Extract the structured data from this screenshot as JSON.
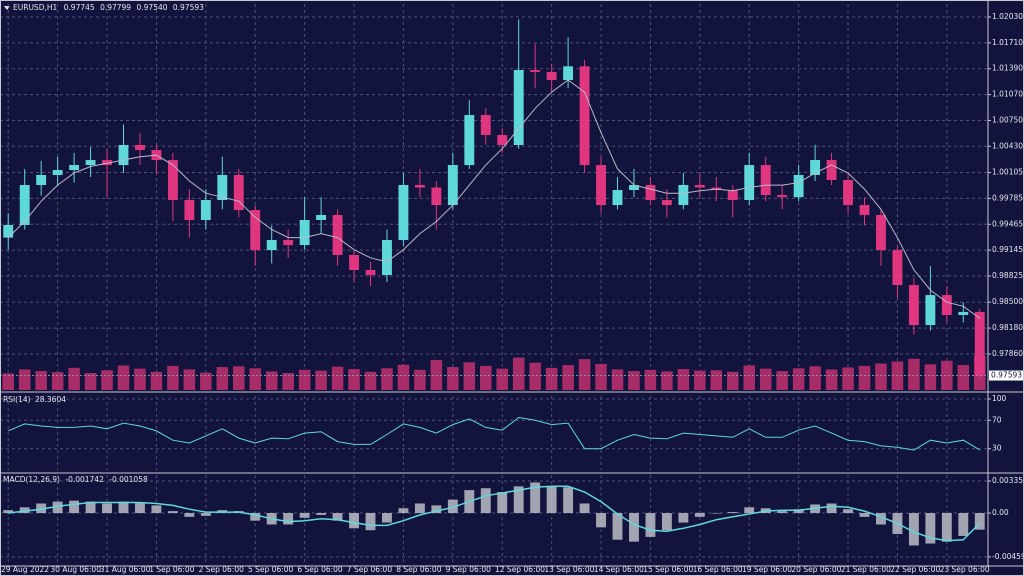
{
  "chart_data": [
    {
      "type": "candlestick",
      "title": "EURUSD,H1",
      "header_values": [
        {
          "value": 0.97745,
          "label": "0.97745"
        },
        {
          "value": 0.97799,
          "label": "0.97799"
        },
        {
          "value": 0.9754,
          "label": "0.97540"
        },
        {
          "value": 0.97593,
          "label": "0.97593"
        }
      ],
      "categories": [
        "29 Aug 2022",
        null,
        null,
        "30 Aug 06:00",
        null,
        null,
        "31 Aug 06:00",
        null,
        null,
        "1 Sep 06:00",
        null,
        null,
        "2 Sep 06:00",
        null,
        null,
        "5 Sep 06:00",
        null,
        null,
        "6 Sep 06:00",
        null,
        null,
        "7 Sep 06:00",
        null,
        null,
        "8 Sep 06:00",
        null,
        null,
        "9 Sep 06:00",
        null,
        null,
        "12 Sep 06:00",
        null,
        null,
        "13 Sep 06:00",
        null,
        null,
        "14 Sep 06:00",
        null,
        null,
        "15 Sep 06:00",
        null,
        null,
        "16 Sep 06:00",
        null,
        null,
        "19 Sep 06:00",
        null,
        null,
        "20 Sep 06:00",
        null,
        null,
        "21 Sep 06:00",
        null,
        null,
        "22 Sep 06:00",
        null,
        null,
        "23 Sep 06:00",
        null,
        null
      ],
      "open": [
        0.993,
        0.99456,
        0.99951,
        1.00075,
        1.00136,
        1.00198,
        1.0026,
        1.00198,
        1.00446,
        1.00384,
        1.0026,
        0.99765,
        0.99518,
        0.99765,
        1.00075,
        0.99641,
        0.99146,
        0.9927,
        0.99208,
        0.99518,
        0.9958,
        0.99085,
        0.98899,
        0.98837,
        0.9927,
        0.99951,
        0.9992,
        0.99703,
        1.00198,
        1.00817,
        1.0057,
        1.00446,
        1.01374,
        1.0135,
        1.0125,
        1.0142,
        1.00198,
        0.99703,
        0.99889,
        0.99951,
        0.99765,
        0.99703,
        0.99951,
        0.9992,
        0.99889,
        0.99765,
        1.00198,
        0.99827,
        0.998,
        1.00075,
        1.0026,
        1.00013,
        0.99703,
        0.9958,
        0.99146,
        0.98713,
        0.98218,
        0.98589,
        0.98342,
        0.9838
      ],
      "high": [
        0.996,
        1.0015,
        1.0025,
        1.003,
        1.0035,
        1.0042,
        1.004,
        1.007,
        1.006,
        1.0045,
        1.0035,
        0.999,
        0.999,
        1.003,
        1.0015,
        0.997,
        0.9945,
        0.994,
        0.998,
        0.998,
        0.9965,
        0.9915,
        0.99,
        0.994,
        1.001,
        1.0015,
        1.0,
        1.0035,
        1.01,
        1.009,
        1.0065,
        1.02,
        1.017,
        1.0145,
        1.0178,
        1.015,
        1.003,
        1.0005,
        1.0015,
        1.0005,
        0.999,
        1.001,
        1.001,
        1.0005,
        0.9995,
        1.0035,
        1.003,
        0.9995,
        1.002,
        1.0045,
        1.0035,
        1.001,
        0.998,
        0.9965,
        0.992,
        0.988,
        0.9895,
        0.987,
        0.985,
        0.9842
      ],
      "low": [
        0.9915,
        0.994,
        0.9982,
        0.9995,
        0.9998,
        1.0005,
        0.998,
        1.001,
        1.002,
        1.0008,
        0.995,
        0.993,
        0.994,
        0.9965,
        0.9955,
        0.9895,
        0.9898,
        0.9905,
        0.9915,
        0.9935,
        0.9895,
        0.9875,
        0.987,
        0.9875,
        0.992,
        0.998,
        0.994,
        0.9965,
        1.0015,
        1.0045,
        1.0035,
        1.004,
        1.0115,
        1.011,
        1.0115,
        1.001,
        0.996,
        0.9965,
        0.998,
        0.997,
        0.9955,
        0.9965,
        0.998,
        0.9975,
        0.9955,
        0.997,
        0.9975,
        0.9965,
        0.9975,
        1.0,
        0.9995,
        0.996,
        0.9945,
        0.9895,
        0.9855,
        0.981,
        0.9815,
        0.9825,
        0.9825,
        0.9754
      ],
      "close": [
        0.99456,
        0.99951,
        1.00075,
        1.00136,
        1.00198,
        1.0026,
        1.00198,
        1.00446,
        1.00384,
        1.0026,
        0.99765,
        0.99518,
        0.99765,
        1.00075,
        0.99641,
        0.99146,
        0.9927,
        0.99208,
        0.99518,
        0.9958,
        0.99085,
        0.98899,
        0.98837,
        0.9927,
        0.99951,
        0.9992,
        0.99703,
        1.00198,
        1.00817,
        1.0057,
        1.00446,
        1.01374,
        1.0135,
        1.0125,
        1.0142,
        1.00198,
        0.99703,
        0.99889,
        0.99951,
        0.99765,
        0.99703,
        0.99951,
        0.9992,
        0.99889,
        0.99765,
        1.00198,
        0.99827,
        0.998,
        1.00075,
        1.0026,
        1.00013,
        0.99703,
        0.9958,
        0.99146,
        0.98713,
        0.98218,
        0.98589,
        0.98342,
        0.9838,
        0.97593
      ],
      "moving_average": [
        0.993,
        0.995,
        0.9975,
        0.9995,
        1.001,
        1.0018,
        1.0022,
        1.0026,
        1.003,
        1.0032,
        1.002,
        1.0,
        0.9985,
        0.998,
        0.9975,
        0.9955,
        0.994,
        0.993,
        0.993,
        0.9935,
        0.993,
        0.9915,
        0.9905,
        0.99,
        0.9915,
        0.9935,
        0.995,
        0.997,
        0.9995,
        1.002,
        1.004,
        1.0065,
        1.009,
        1.011,
        1.0125,
        1.011,
        1.006,
        1.0015,
        0.9995,
        0.999,
        0.9985,
        0.9985,
        0.9988,
        0.999,
        0.9988,
        0.9992,
        0.9995,
        0.9995,
        0.9998,
        1.001,
        1.002,
        1.001,
        0.999,
        0.9965,
        0.993,
        0.989,
        0.9865,
        0.985,
        0.9845,
        0.983
      ],
      "volume": [
        4200,
        5200,
        4800,
        4500,
        5600,
        4300,
        5000,
        6200,
        5400,
        4600,
        6100,
        5200,
        4400,
        5800,
        6000,
        5500,
        4700,
        4300,
        5100,
        4900,
        5900,
        5300,
        4600,
        5500,
        6400,
        5100,
        7600,
        5800,
        7000,
        6100,
        5400,
        8200,
        6900,
        5600,
        6300,
        7800,
        6600,
        5200,
        4800,
        5100,
        4700,
        5300,
        4900,
        5000,
        4600,
        6200,
        5400,
        4800,
        5500,
        6000,
        5200,
        5700,
        6100,
        6700,
        7200,
        7900,
        6500,
        7400,
        6300,
        8600
      ],
      "candle_colors": {
        "up": "#5fd8dc",
        "down": "#e0357f"
      },
      "ma_color": "#b9b9c6",
      "volume_color": "#c2306f",
      "ylim": [
        0.97414,
        1.02191
      ],
      "yticks": [
        {
          "value": 1.0203,
          "label": "1.02030"
        },
        {
          "value": 1.0171,
          "label": "1.01710"
        },
        {
          "value": 1.0139,
          "label": "1.01390"
        },
        {
          "value": 1.0107,
          "label": "1.01070"
        },
        {
          "value": 1.0075,
          "label": "1.00750"
        },
        {
          "value": 1.0043,
          "label": "1.00430"
        },
        {
          "value": 1.00105,
          "label": "1.00105"
        },
        {
          "value": 0.99785,
          "label": "0.99785"
        },
        {
          "value": 0.99465,
          "label": "0.99465"
        },
        {
          "value": 0.99145,
          "label": "0.99145"
        },
        {
          "value": 0.98825,
          "label": "0.98825"
        },
        {
          "value": 0.985,
          "label": "0.98500"
        },
        {
          "value": 0.9818,
          "label": "0.98180"
        },
        {
          "value": 0.9786,
          "label": "0.97860"
        }
      ],
      "last_price": {
        "value": 0.97593,
        "label": "0.97593"
      },
      "grid": true
    },
    {
      "type": "line",
      "title": "RSI(14)",
      "current": 28.3604,
      "color": "#5fd8dc",
      "values": [
        55,
        65,
        62,
        60,
        60,
        62,
        58,
        66,
        62,
        55,
        42,
        38,
        48,
        58,
        45,
        38,
        45,
        44,
        52,
        54,
        40,
        36,
        36,
        50,
        65,
        60,
        52,
        64,
        72,
        60,
        56,
        74,
        70,
        64,
        66,
        30,
        30,
        42,
        50,
        45,
        44,
        52,
        50,
        48,
        46,
        58,
        46,
        46,
        56,
        62,
        52,
        42,
        40,
        34,
        32,
        28,
        42,
        38,
        42,
        28.3604
      ],
      "ylim": [
        0,
        100
      ],
      "yticks": [
        100,
        70,
        30
      ],
      "grid": true
    },
    {
      "type": "macd",
      "title": "MACD(12,26,9)",
      "current": [
        -0.001742,
        -0.001058
      ],
      "histogram_color": "#c8c8d0",
      "signal_color": "#5fd8dc",
      "histogram": [
        0.0003,
        0.0006,
        0.001,
        0.0012,
        0.0013,
        0.0012,
        0.001,
        0.0012,
        0.0011,
        0.0008,
        0.0002,
        -0.0004,
        -0.0003,
        0.0003,
        0.0002,
        -0.0008,
        -0.0012,
        -0.0012,
        -0.0005,
        -0.0002,
        -0.0008,
        -0.0016,
        -0.0018,
        -0.001,
        0.0005,
        0.001,
        0.0008,
        0.0014,
        0.0024,
        0.0026,
        0.0022,
        0.0028,
        0.0032,
        0.0028,
        0.0027,
        0.001,
        -0.0015,
        -0.0028,
        -0.003,
        -0.0025,
        -0.0018,
        -0.001,
        -0.0004,
        0.0,
        0.0001,
        0.0006,
        0.0005,
        0.0002,
        0.0004,
        0.0009,
        0.001,
        0.0004,
        -0.0004,
        -0.0012,
        -0.0022,
        -0.0034,
        -0.0032,
        -0.003,
        -0.0024,
        -0.001742
      ],
      "signal": [
        0.0,
        0.0002,
        0.0004,
        0.0007,
        0.0009,
        0.0011,
        0.0011,
        0.0011,
        0.0011,
        0.001,
        0.0008,
        0.0004,
        0.0001,
        0.0001,
        0.0001,
        -0.0002,
        -0.0006,
        -0.0009,
        -0.0008,
        -0.0006,
        -0.0007,
        -0.001,
        -0.0013,
        -0.0013,
        -0.0008,
        -0.0002,
        0.0002,
        0.0006,
        0.0012,
        0.0018,
        0.0021,
        0.0024,
        0.0027,
        0.0028,
        0.0028,
        0.0022,
        0.0012,
        -0.0001,
        -0.0012,
        -0.0018,
        -0.0019,
        -0.0016,
        -0.0012,
        -0.0007,
        -0.0004,
        -0.0001,
        0.0002,
        0.0003,
        0.0003,
        0.0005,
        0.0007,
        0.0006,
        0.0002,
        -0.0004,
        -0.0011,
        -0.002,
        -0.0026,
        -0.0029,
        -0.0028,
        -0.001058
      ],
      "ylim": [
        -0.00555,
        0.00367
      ],
      "yticks": [
        0.003353,
        {
          "value": 0,
          "label": "0.00"
        },
        -0.004594
      ],
      "grid": true
    }
  ]
}
